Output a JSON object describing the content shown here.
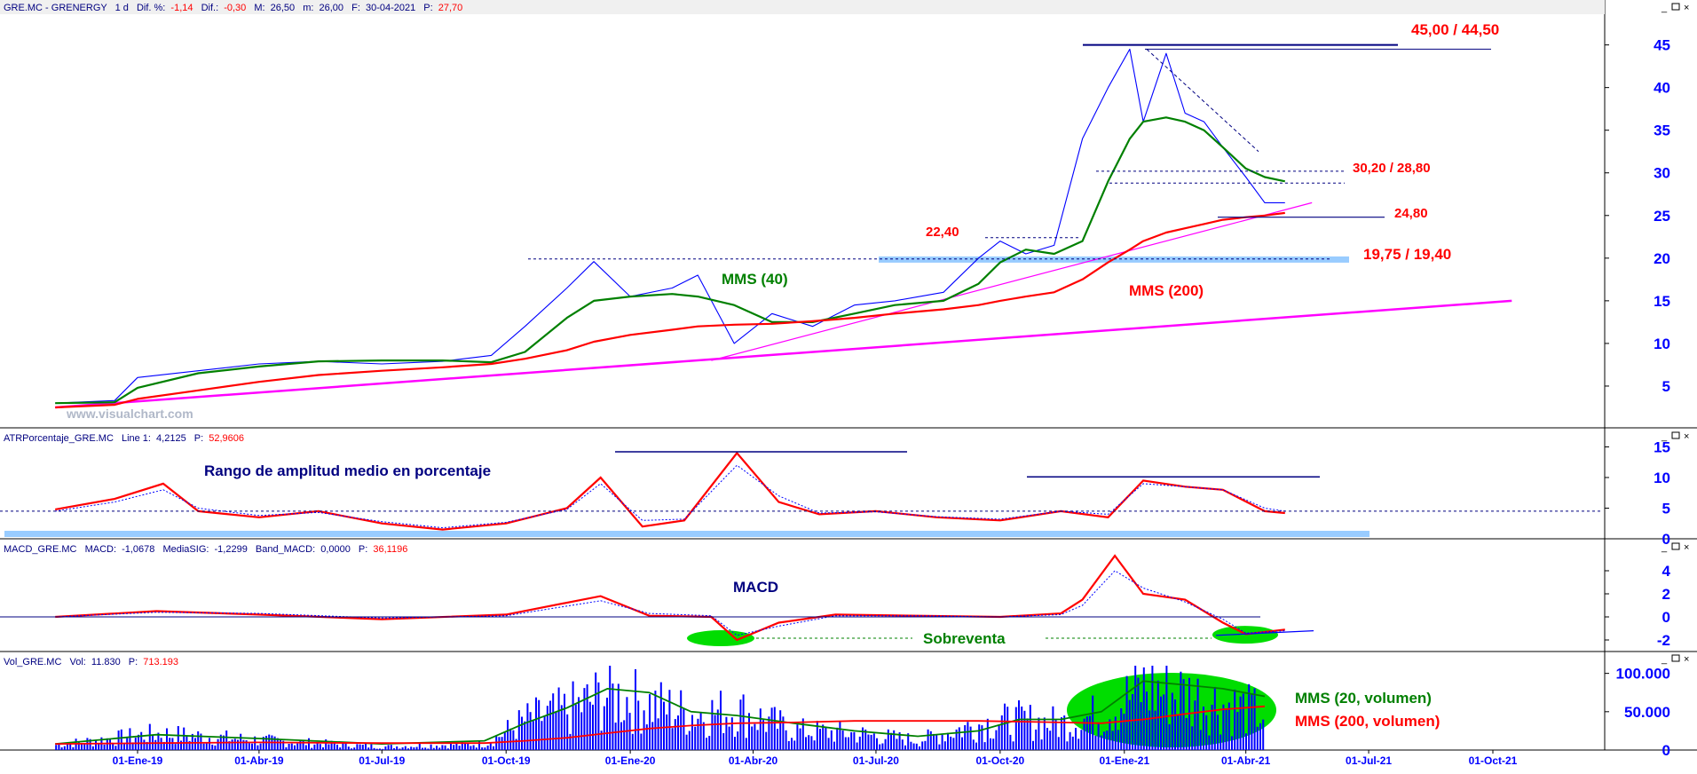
{
  "colors": {
    "price": "#0000ff",
    "mms40": "#008000",
    "mms200": "#ff0000",
    "trend": "#ff00ff",
    "atr": "#ff0000",
    "atr_signal": "#0000ff",
    "macd": "#ff0000",
    "macd_signal": "#0000ff",
    "volume": "#0000ff",
    "vol_mms20": "#008000",
    "vol_mms200": "#ff0000",
    "annot_red": "#ff0000",
    "annot_green": "#008000",
    "annot_navy": "#000080",
    "band": "#99ccff",
    "oversold": "#00dd00",
    "axis_text": "#0000ff"
  },
  "x_axis": {
    "labels": [
      "01-Ene-19",
      "01-Abr-19",
      "01-Jul-19",
      "01-Oct-19",
      "01-Ene-20",
      "01-Abr-20",
      "01-Jul-20",
      "01-Oct-20",
      "01-Ene-21",
      "01-Abr-21",
      "01-Jul-21",
      "01-Oct-21"
    ]
  },
  "chart_data": [
    {
      "type": "line",
      "panel": "price",
      "header": {
        "symbol": "GRE.MC - GRENERGY",
        "period": "1 d",
        "dif_pct_label": "Dif. %:",
        "dif_pct_value": "-1,14",
        "dif_label": "Dif.:",
        "dif_value": "-0,30",
        "max_label": "M:",
        "max_value": "26,50",
        "min_label": "m:",
        "min_value": "26,00",
        "date_label": "F:",
        "date_value": "30-04-2021",
        "price_label": "P:",
        "price_value": "27,70"
      },
      "watermark": "www.visualchart.com",
      "ylim": [
        0,
        46
      ],
      "y_ticks": [
        5,
        10,
        15,
        20,
        25,
        30,
        35,
        40,
        45
      ],
      "x": [
        "2018-11-01",
        "2018-12-15",
        "2019-01-01",
        "2019-02-15",
        "2019-04-01",
        "2019-05-15",
        "2019-07-01",
        "2019-08-15",
        "2019-09-20",
        "2019-10-15",
        "2019-11-15",
        "2019-12-05",
        "2020-01-01",
        "2020-02-01",
        "2020-02-20",
        "2020-03-18",
        "2020-04-15",
        "2020-05-15",
        "2020-06-15",
        "2020-07-15",
        "2020-08-20",
        "2020-09-15",
        "2020-10-01",
        "2020-10-20",
        "2020-11-10",
        "2020-12-01",
        "2020-12-20",
        "2021-01-05",
        "2021-01-15",
        "2021-02-01",
        "2021-02-15",
        "2021-03-01",
        "2021-03-15",
        "2021-04-01",
        "2021-04-15",
        "2021-04-30"
      ],
      "series": [
        {
          "name": "",
          "key": "price",
          "values": [
            3.0,
            3.3,
            6.0,
            6.8,
            7.6,
            7.9,
            7.6,
            7.9,
            8.6,
            12.0,
            16.5,
            19.6,
            15.5,
            16.5,
            18.0,
            10.0,
            13.5,
            12.0,
            14.5,
            15.0,
            16.0,
            20.0,
            22.0,
            20.5,
            21.5,
            34.0,
            40.0,
            44.5,
            36.0,
            44.0,
            37.0,
            36.0,
            33.0,
            29.5,
            26.5,
            26.5
          ]
        },
        {
          "name": "MMS (40)",
          "key": "mms40",
          "values": [
            3.0,
            3.1,
            4.8,
            6.5,
            7.3,
            7.9,
            8.0,
            8.0,
            7.8,
            9.0,
            13.0,
            15.0,
            15.5,
            15.8,
            15.5,
            14.5,
            12.5,
            12.5,
            13.5,
            14.5,
            15.0,
            17.0,
            19.5,
            21.0,
            20.5,
            22.0,
            29.0,
            34.0,
            36.0,
            36.5,
            36.0,
            35.0,
            33.0,
            30.5,
            29.5,
            29.0
          ]
        },
        {
          "name": "MMS (200)",
          "key": "mms200",
          "values": [
            2.5,
            2.8,
            3.5,
            4.5,
            5.5,
            6.3,
            6.8,
            7.2,
            7.6,
            8.2,
            9.2,
            10.2,
            11.0,
            11.6,
            12.0,
            12.2,
            12.3,
            12.6,
            13.0,
            13.5,
            14.0,
            14.5,
            15.0,
            15.5,
            16.0,
            17.5,
            19.5,
            21.0,
            22.0,
            23.0,
            23.5,
            24.0,
            24.5,
            24.8,
            25.0,
            25.3
          ]
        }
      ],
      "trendlines": [
        {
          "from": [
            "2018-11-01",
            2.5
          ],
          "to": [
            "2021-10-15",
            15.0
          ]
        },
        {
          "from": [
            "2020-03-01",
            8.0
          ],
          "to": [
            "2021-05-20",
            26.5
          ]
        }
      ],
      "annotations": {
        "level_45": "45,00 / 44,50",
        "level_30": "30,20 / 28,80",
        "level_24": "24,80",
        "level_22": "22,40",
        "level_19": "19,75 / 19,40",
        "mms40_label": "MMS (40)",
        "mms200_label": "MMS (200)"
      }
    },
    {
      "type": "line",
      "panel": "atr",
      "header": {
        "title": "ATRPorcentaje_GRE.MC",
        "line_label": "Line 1:",
        "line_value": "4,2125",
        "p_label": "P:",
        "p_value": "52,9606"
      },
      "annotation": "Rango de amplitud medio en porcentaje",
      "ylim": [
        0,
        15
      ],
      "y_ticks": [
        0,
        5,
        10,
        15
      ],
      "x": [
        "2018-11-01",
        "2018-12-15",
        "2019-01-20",
        "2019-02-15",
        "2019-04-01",
        "2019-05-15",
        "2019-07-01",
        "2019-08-15",
        "2019-10-01",
        "2019-11-15",
        "2019-12-10",
        "2020-01-10",
        "2020-02-10",
        "2020-03-20",
        "2020-04-20",
        "2020-05-20",
        "2020-07-01",
        "2020-08-15",
        "2020-10-01",
        "2020-11-15",
        "2020-12-20",
        "2021-01-15",
        "2021-02-15",
        "2021-03-15",
        "2021-04-15",
        "2021-04-30"
      ],
      "series": [
        {
          "name": "",
          "key": "atr",
          "values": [
            4.8,
            6.5,
            9.0,
            4.5,
            3.5,
            4.5,
            2.5,
            1.5,
            2.5,
            5.0,
            10.0,
            2.0,
            3.0,
            14.0,
            6.0,
            4.0,
            4.5,
            3.5,
            3.0,
            4.5,
            3.5,
            9.5,
            8.5,
            8.0,
            4.5,
            4.2
          ]
        },
        {
          "name": "",
          "key": "atr_signal",
          "values": [
            4.5,
            6.0,
            8.0,
            5.0,
            3.8,
            4.3,
            2.8,
            1.8,
            2.7,
            4.8,
            9.0,
            3.0,
            3.2,
            12.0,
            7.0,
            4.2,
            4.4,
            3.6,
            3.2,
            4.5,
            4.0,
            9.0,
            8.5,
            8.0,
            5.0,
            4.5
          ]
        }
      ]
    },
    {
      "type": "line",
      "panel": "macd",
      "header": {
        "title": "MACD_GRE.MC",
        "macd_label": "MACD:",
        "macd_value": "-1,0678",
        "sig_label": "MediaSIG:",
        "sig_value": "-1,2299",
        "band_label": "Band_MACD:",
        "band_value": "0,0000",
        "p_label": "P:",
        "p_value": "36,1196"
      },
      "annotation": "MACD",
      "oversold_label": "Sobreventa",
      "ylim": [
        -3,
        6
      ],
      "y_ticks": [
        -2,
        0,
        2,
        4
      ],
      "x": [
        "2018-11-01",
        "2019-01-15",
        "2019-04-01",
        "2019-07-01",
        "2019-10-01",
        "2019-12-10",
        "2020-01-15",
        "2020-03-01",
        "2020-03-20",
        "2020-04-20",
        "2020-06-01",
        "2020-08-01",
        "2020-10-01",
        "2020-11-15",
        "2020-12-01",
        "2020-12-25",
        "2021-01-15",
        "2021-02-15",
        "2021-03-15",
        "2021-04-01",
        "2021-04-30"
      ],
      "series": [
        {
          "name": "",
          "key": "macd",
          "values": [
            0.0,
            0.5,
            0.2,
            -0.2,
            0.2,
            1.8,
            0.1,
            0.0,
            -2.0,
            -0.5,
            0.2,
            0.1,
            0.0,
            0.3,
            1.5,
            5.3,
            2.0,
            1.5,
            -0.5,
            -1.5,
            -1.1
          ]
        },
        {
          "name": "",
          "key": "macd_signal",
          "values": [
            0.0,
            0.4,
            0.3,
            -0.1,
            0.1,
            1.4,
            0.3,
            0.1,
            -1.6,
            -0.8,
            0.1,
            0.1,
            0.0,
            0.2,
            1.0,
            4.0,
            2.5,
            1.3,
            -0.2,
            -1.4,
            -1.2
          ]
        }
      ]
    },
    {
      "type": "bar",
      "panel": "volume",
      "header": {
        "title": "Vol_GRE.MC",
        "vol_label": "Vol:",
        "vol_value": "11.830",
        "p_label": "P:",
        "p_value": "713.193"
      },
      "ylim": [
        0,
        110000
      ],
      "y_ticks": [
        0,
        50000,
        100000
      ],
      "y_tick_labels": [
        "0",
        "50.000",
        "100.000"
      ],
      "x": [
        "2018-11-01",
        "2019-01-15",
        "2019-04-01",
        "2019-07-01",
        "2019-09-15",
        "2019-10-15",
        "2019-11-15",
        "2019-12-15",
        "2020-01-15",
        "2020-02-15",
        "2020-03-20",
        "2020-05-01",
        "2020-06-15",
        "2020-08-01",
        "2020-09-15",
        "2020-10-15",
        "2020-11-15",
        "2020-12-15",
        "2021-01-15",
        "2021-02-15",
        "2021-03-15",
        "2021-04-15"
      ],
      "values": [
        8000,
        25000,
        15000,
        5000,
        10000,
        45000,
        60000,
        85000,
        70000,
        55000,
        60000,
        30000,
        25000,
        15000,
        40000,
        45000,
        40000,
        55000,
        95000,
        85000,
        70000,
        55000
      ],
      "series": [
        {
          "name": "MMS (20, volumen)",
          "key": "vol_mms20",
          "values": [
            8000,
            20000,
            15000,
            8000,
            12000,
            35000,
            55000,
            80000,
            75000,
            50000,
            45000,
            35000,
            25000,
            18000,
            25000,
            40000,
            40000,
            50000,
            90000,
            85000,
            80000,
            70000
          ]
        },
        {
          "name": "MMS (200, volumen)",
          "key": "vol_mms200",
          "values": [
            8000,
            9000,
            10000,
            9000,
            9000,
            12000,
            16000,
            22000,
            28000,
            32000,
            35000,
            36000,
            38000,
            38000,
            38000,
            37000,
            36000,
            35000,
            40000,
            47000,
            53000,
            57000
          ]
        }
      ]
    }
  ]
}
